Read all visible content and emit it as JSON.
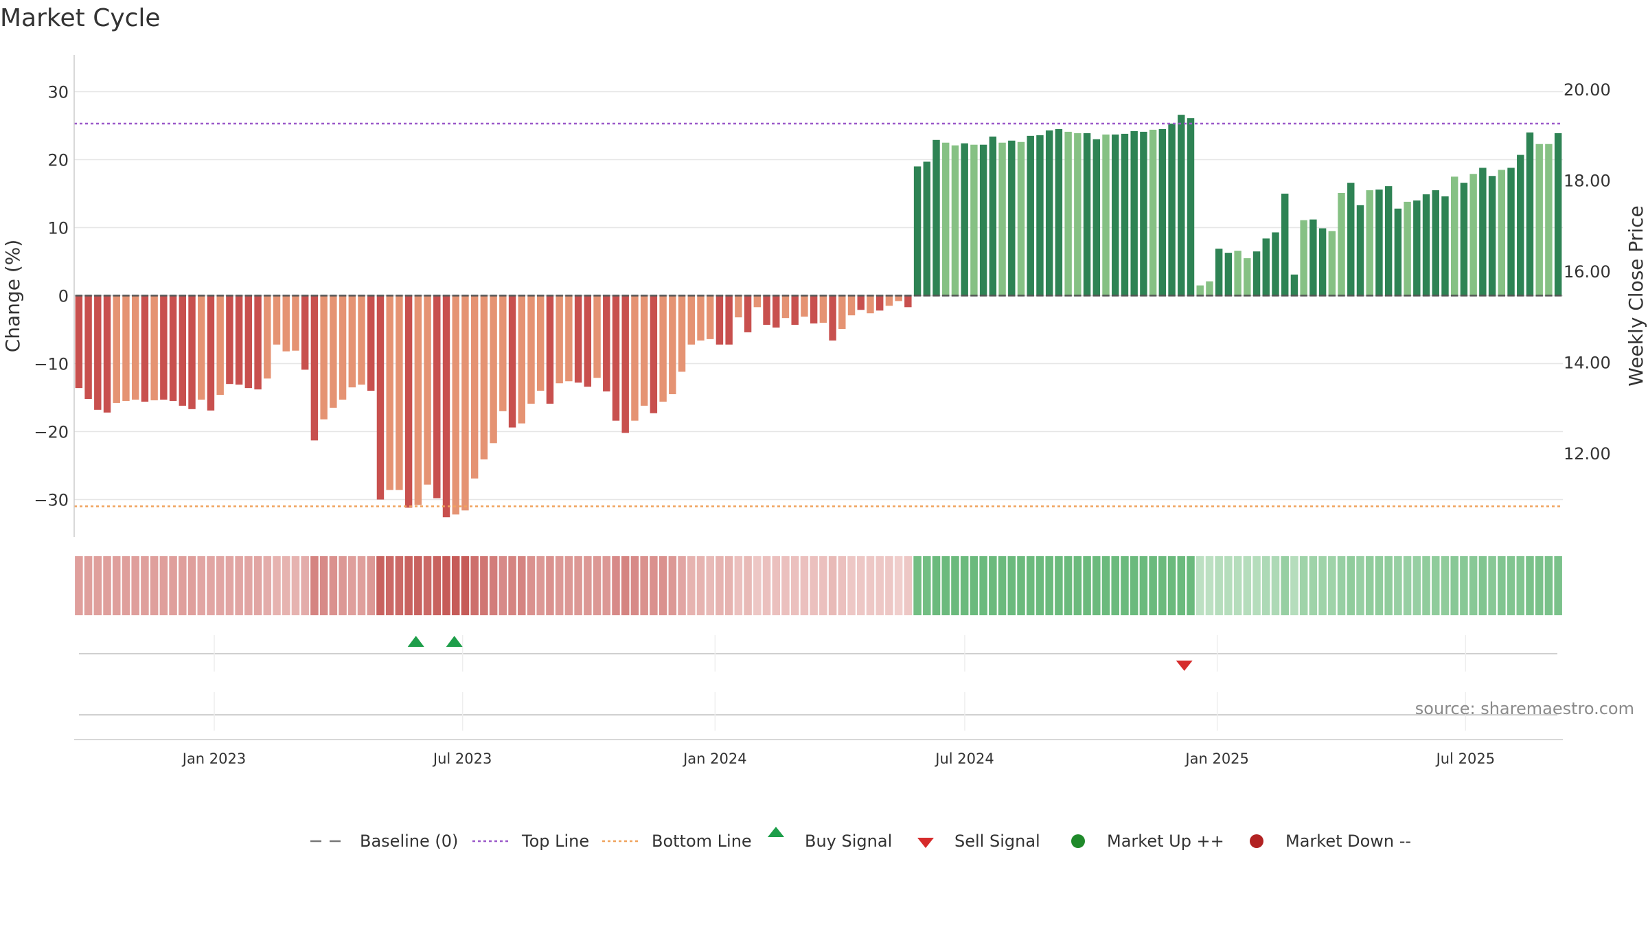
{
  "title": "Market Cycle",
  "source": "source: sharemaestro.com",
  "colors": {
    "down_strong": "#c8504e",
    "down_light": "#e59373",
    "up_strong": "#2e8354",
    "up_light": "#86c184",
    "top_line": "#9b59c9",
    "bottom_line": "#f0a35e",
    "baseline": "#555555",
    "buy": "#1e9e4a",
    "sell": "#d62b2b",
    "market_up": "#1f8a2a",
    "market_down": "#b22222",
    "grid": "#e6e6e6"
  },
  "legend": [
    {
      "label": "Baseline (0)",
      "icon": "dash-line"
    },
    {
      "label": "Top Line",
      "icon": "dotted-purple"
    },
    {
      "label": "Bottom Line",
      "icon": "dotted-orange"
    },
    {
      "label": "Buy Signal",
      "icon": "triangle-up"
    },
    {
      "label": "Sell Signal",
      "icon": "triangle-down"
    },
    {
      "label": "Market Up ++",
      "icon": "circle-green"
    },
    {
      "label": "Market Down --",
      "icon": "circle-red"
    }
  ],
  "chart_data": {
    "type": "bar",
    "xlabel": "",
    "ylabel": "Change (%)",
    "y2label": "Weekly Close Price",
    "ylim": [
      -35,
      35
    ],
    "y_ticks": [
      30,
      20,
      10,
      0,
      -10,
      -20,
      -30
    ],
    "y_tick_labels": [
      "30",
      "20",
      "10",
      "0",
      "−10",
      "−20",
      "−30"
    ],
    "y2_ticks": [
      20,
      18,
      16,
      14,
      12
    ],
    "y2_tick_labels": [
      "20.00",
      "18.00",
      "16.00",
      "14.00",
      "12.00"
    ],
    "x_ticks": [
      "2023-01-01",
      "2023-07-01",
      "2024-01-01",
      "2024-07-01",
      "2025-01-01",
      "2025-07-01"
    ],
    "x_tick_labels": [
      "Jan 2023",
      "Jul 2023",
      "Jan 2024",
      "Jul 2024",
      "Jan 2025",
      "Jul 2025"
    ],
    "top_line": 25.3,
    "bottom_line": -31,
    "baseline": 0,
    "week_start": "2022-10-09",
    "values": [
      -13.6,
      -15.2,
      -16.8,
      -17.2,
      -15.8,
      -15.5,
      -15.3,
      -15.6,
      -15.4,
      -15.3,
      -15.5,
      -16.2,
      -16.7,
      -15.3,
      -16.9,
      -14.6,
      -13,
      -13.1,
      -13.6,
      -13.8,
      -12.2,
      -7.2,
      -8.2,
      -8.1,
      -10.9,
      -21.3,
      -18.2,
      -16.5,
      -15.3,
      -13.5,
      -13.1,
      -14,
      -30,
      -28.6,
      -28.6,
      -31.2,
      -30.8,
      -27.8,
      -29.8,
      -32.6,
      -32.2,
      -31.6,
      -26.9,
      -24.1,
      -21.7,
      -17,
      -19.4,
      -18.8,
      -15.9,
      -14,
      -15.9,
      -12.9,
      -12.6,
      -12.8,
      -13.4,
      -12.1,
      -14.1,
      -18.4,
      -20.2,
      -18.4,
      -16.2,
      -17.3,
      -15.6,
      -14.5,
      -11.2,
      -7.2,
      -6.6,
      -6.4,
      -7.2,
      -7.2,
      -3.2,
      -5.4,
      -1.7,
      -4.3,
      -4.7,
      -3.3,
      -4.3,
      -3.1,
      -4.1,
      -4,
      -6.6,
      -4.9,
      -2.9,
      -2.1,
      -2.6,
      -2.2,
      -1.5,
      -0.8,
      -1.7,
      19,
      19.7,
      22.9,
      22.5,
      22.1,
      22.4,
      22.2,
      22.2,
      23.4,
      22.5,
      22.8,
      22.6,
      23.5,
      23.6,
      24.3,
      24.5,
      24.1,
      23.9,
      23.9,
      23,
      23.7,
      23.7,
      23.8,
      24.2,
      24.1,
      24.4,
      24.5,
      25.3,
      26.6,
      26.1,
      1.5,
      2.1,
      6.9,
      6.3,
      6.6,
      5.5,
      6.5,
      8.4,
      9.3,
      15,
      3.1,
      11.1,
      11.2,
      9.9,
      9.5,
      15.1,
      16.6,
      13.3,
      15.5,
      15.6,
      16.1,
      12.8,
      13.8,
      14,
      14.9,
      15.5,
      14.6,
      17.5,
      16.6,
      17.9,
      18.8,
      17.6,
      18.5,
      18.8,
      20.7,
      24,
      22.3,
      22.3,
      23.9
    ],
    "light_flags": [
      0,
      0,
      0,
      0,
      1,
      1,
      1,
      0,
      1,
      0,
      0,
      0,
      0,
      1,
      0,
      1,
      0,
      0,
      0,
      0,
      1,
      1,
      1,
      1,
      0,
      0,
      1,
      1,
      1,
      1,
      1,
      0,
      0,
      1,
      1,
      0,
      1,
      1,
      0,
      0,
      1,
      1,
      1,
      1,
      1,
      1,
      0,
      1,
      1,
      1,
      0,
      1,
      1,
      0,
      0,
      1,
      0,
      0,
      0,
      1,
      1,
      0,
      1,
      1,
      1,
      1,
      1,
      1,
      0,
      0,
      1,
      0,
      1,
      0,
      0,
      1,
      0,
      1,
      0,
      1,
      0,
      1,
      1,
      0,
      1,
      0,
      1,
      1,
      0,
      0,
      0,
      0,
      1,
      1,
      0,
      1,
      0,
      0,
      1,
      0,
      1,
      0,
      0,
      0,
      0,
      1,
      1,
      0,
      0,
      1,
      0,
      0,
      0,
      0,
      1,
      0,
      0,
      0,
      0,
      1,
      1,
      0,
      0,
      1,
      1,
      0,
      0,
      0,
      0,
      0,
      1,
      0,
      0,
      1,
      1,
      0,
      0,
      1,
      0,
      0,
      0,
      1,
      0,
      0,
      0,
      0,
      1,
      0,
      1,
      0,
      0,
      1,
      0,
      0,
      0,
      1,
      1,
      0
    ],
    "heat_intensity": [
      0.5,
      0.5,
      0.5,
      0.5,
      0.5,
      0.5,
      0.5,
      0.5,
      0.5,
      0.5,
      0.5,
      0.5,
      0.5,
      0.45,
      0.45,
      0.45,
      0.45,
      0.45,
      0.45,
      0.45,
      0.4,
      0.35,
      0.35,
      0.35,
      0.4,
      0.7,
      0.65,
      0.6,
      0.55,
      0.5,
      0.5,
      0.55,
      0.95,
      0.9,
      0.9,
      0.95,
      0.95,
      0.9,
      0.95,
      1,
      1,
      1,
      0.85,
      0.8,
      0.75,
      0.65,
      0.7,
      0.7,
      0.6,
      0.55,
      0.6,
      0.55,
      0.55,
      0.55,
      0.55,
      0.55,
      0.55,
      0.65,
      0.7,
      0.65,
      0.6,
      0.6,
      0.6,
      0.55,
      0.45,
      0.35,
      0.35,
      0.3,
      0.35,
      0.35,
      0.25,
      0.3,
      0.2,
      0.25,
      0.25,
      0.25,
      0.25,
      0.25,
      0.25,
      0.25,
      0.3,
      0.25,
      0.2,
      0.2,
      0.2,
      0.2,
      0.2,
      0.15,
      0.2,
      0.8,
      0.8,
      0.85,
      0.85,
      0.85,
      0.85,
      0.85,
      0.85,
      0.85,
      0.85,
      0.85,
      0.85,
      0.85,
      0.85,
      0.85,
      0.85,
      0.85,
      0.85,
      0.85,
      0.85,
      0.85,
      0.85,
      0.85,
      0.85,
      0.85,
      0.85,
      0.85,
      0.85,
      0.85,
      0.85,
      0.3,
      0.3,
      0.35,
      0.35,
      0.35,
      0.35,
      0.35,
      0.4,
      0.4,
      0.55,
      0.35,
      0.5,
      0.5,
      0.5,
      0.5,
      0.55,
      0.6,
      0.55,
      0.6,
      0.6,
      0.6,
      0.55,
      0.55,
      0.55,
      0.6,
      0.6,
      0.6,
      0.65,
      0.65,
      0.65,
      0.7,
      0.65,
      0.7,
      0.7,
      0.7,
      0.75,
      0.75,
      0.75,
      0.75
    ],
    "buy_signals": [
      "2023-05-28",
      "2023-06-25"
    ],
    "sell_signals": [
      "2024-12-08"
    ],
    "market_up": [],
    "market_down": []
  }
}
